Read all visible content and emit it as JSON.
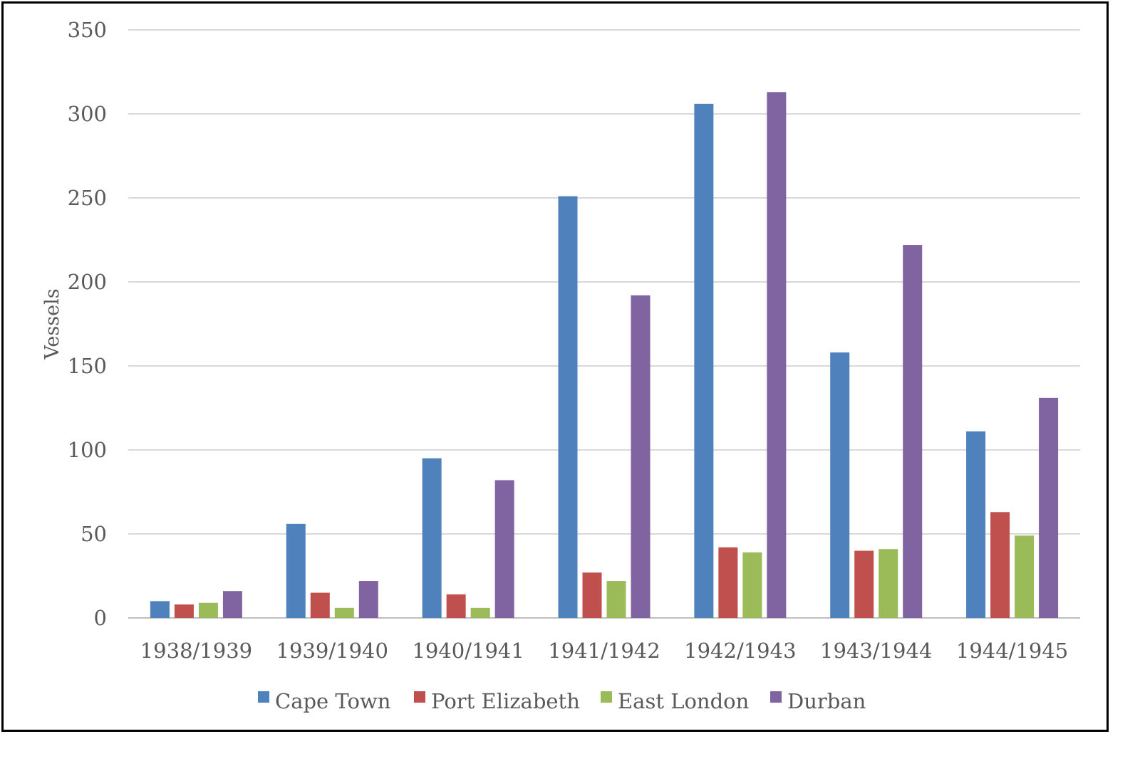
{
  "chart_data": {
    "type": "bar",
    "categories": [
      "1938/1939",
      "1939/1940",
      "1940/1941",
      "1941/1942",
      "1942/1943",
      "1943/1944",
      "1944/1945"
    ],
    "series": [
      {
        "name": "Cape Town",
        "color": "#4F81BD",
        "values": [
          10,
          56,
          95,
          251,
          306,
          158,
          111
        ]
      },
      {
        "name": "Port Elizabeth",
        "color": "#C0504D",
        "values": [
          8,
          15,
          14,
          27,
          42,
          40,
          63
        ]
      },
      {
        "name": "East London",
        "color": "#9BBB59",
        "values": [
          9,
          6,
          6,
          22,
          39,
          41,
          49
        ]
      },
      {
        "name": "Durban",
        "color": "#8064A2",
        "values": [
          16,
          22,
          82,
          192,
          313,
          222,
          131
        ]
      }
    ],
    "ylabel": "Vessels",
    "xlabel": "",
    "ylim": [
      0,
      350
    ],
    "yticks": [
      0,
      50,
      100,
      150,
      200,
      250,
      300,
      350
    ],
    "grid": true,
    "legend_position": "bottom"
  }
}
